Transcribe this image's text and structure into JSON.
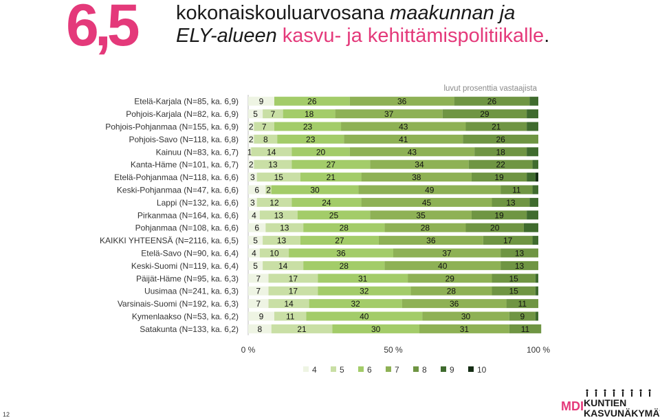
{
  "header": {
    "big_number": "6,5",
    "title_line_1_plain": "kokonaiskouluarvosana ",
    "title_line_1_italic": "maakunnan ja",
    "title_line_2_italic": "ELY-alueen",
    "title_line_2_pink": " kasvu- ja kehittämispolitiikalle",
    "title_line_2_end": "."
  },
  "page_number": "12",
  "logo": {
    "mdi": "MDI",
    "line_1": "KUNTIEN",
    "line_2": "KASVUNÄKYMÄT"
  },
  "colors": {
    "4": "#eef4e3",
    "5": "#c9dfa5",
    "6": "#a3cc69",
    "7": "#8eb155",
    "8": "#6f9543",
    "9": "#3f6b2e",
    "10": "#152d14"
  },
  "chart_data": {
    "type": "bar",
    "orientation": "horizontal",
    "stacked": true,
    "percent_stacked": true,
    "note": "luvut prosenttia vastaajista",
    "xlim": [
      0,
      100
    ],
    "x_ticks": [
      "0 %",
      "50 %",
      "100 %"
    ],
    "legend_position": "bottom",
    "categories": [
      "Etelä-Karjala (N=85, ka. 6,9)",
      "Pohjois-Karjala (N=82, ka. 6,9)",
      "Pohjois-Pohjanmaa (N=155, ka. 6,9)",
      "Pohjois-Savo (N=118, ka. 6,8)",
      "Kainuu (N=83, ka. 6,7)",
      "Kanta-Häme (N=101, ka. 6,7)",
      "Etelä-Pohjanmaa (N=118, ka. 6,6)",
      "Keski-Pohjanmaa (N=47, ka. 6,6)",
      "Lappi (N=132, ka. 6,6)",
      "Pirkanmaa (N=164, ka. 6,6)",
      "Pohjanmaa (N=108, ka. 6,6)",
      "KAIKKI YHTEENSÄ (N=2116, ka. 6,5)",
      "Etelä-Savo (N=90, ka. 6,4)",
      "Keski-Suomi (N=119, ka. 6,4)",
      "Päijät-Häme (N=95, ka. 6,3)",
      "Uusimaa (N=241, ka. 6,3)",
      "Varsinais-Suomi (N=192, ka. 6,3)",
      "Kymenlaakso (N=53, ka. 6,2)",
      "Satakunta (N=133, ka. 6,2)"
    ],
    "series": [
      {
        "name": "4",
        "values": [
          9,
          5,
          2,
          2,
          1,
          2,
          3,
          6,
          3,
          4,
          6,
          5,
          4,
          5,
          7,
          7,
          7,
          9,
          8
        ]
      },
      {
        "name": "5",
        "values": [
          0,
          7,
          7,
          8,
          14,
          13,
          15,
          2,
          12,
          13,
          13,
          13,
          10,
          14,
          17,
          17,
          14,
          11,
          21
        ]
      },
      {
        "name": "6",
        "values": [
          26,
          18,
          23,
          23,
          20,
          27,
          21,
          30,
          24,
          25,
          28,
          27,
          36,
          28,
          31,
          32,
          32,
          40,
          30
        ]
      },
      {
        "name": "7",
        "values": [
          36,
          37,
          43,
          41,
          43,
          34,
          38,
          49,
          45,
          35,
          28,
          36,
          37,
          40,
          29,
          28,
          36,
          30,
          31
        ]
      },
      {
        "name": "8",
        "values": [
          26,
          29,
          21,
          26,
          18,
          22,
          19,
          11,
          13,
          19,
          20,
          17,
          13,
          13,
          15,
          15,
          11,
          9,
          11
        ]
      },
      {
        "name": "9",
        "values": [
          3,
          4,
          4,
          0,
          4,
          2,
          3,
          2,
          3,
          4,
          5,
          2,
          0,
          0,
          1,
          1,
          0,
          1,
          0
        ]
      },
      {
        "name": "10",
        "values": [
          0,
          0,
          0,
          0,
          0,
          0,
          1,
          0,
          0,
          0,
          0,
          0,
          0,
          0,
          0,
          0,
          0,
          0,
          0
        ]
      }
    ]
  }
}
